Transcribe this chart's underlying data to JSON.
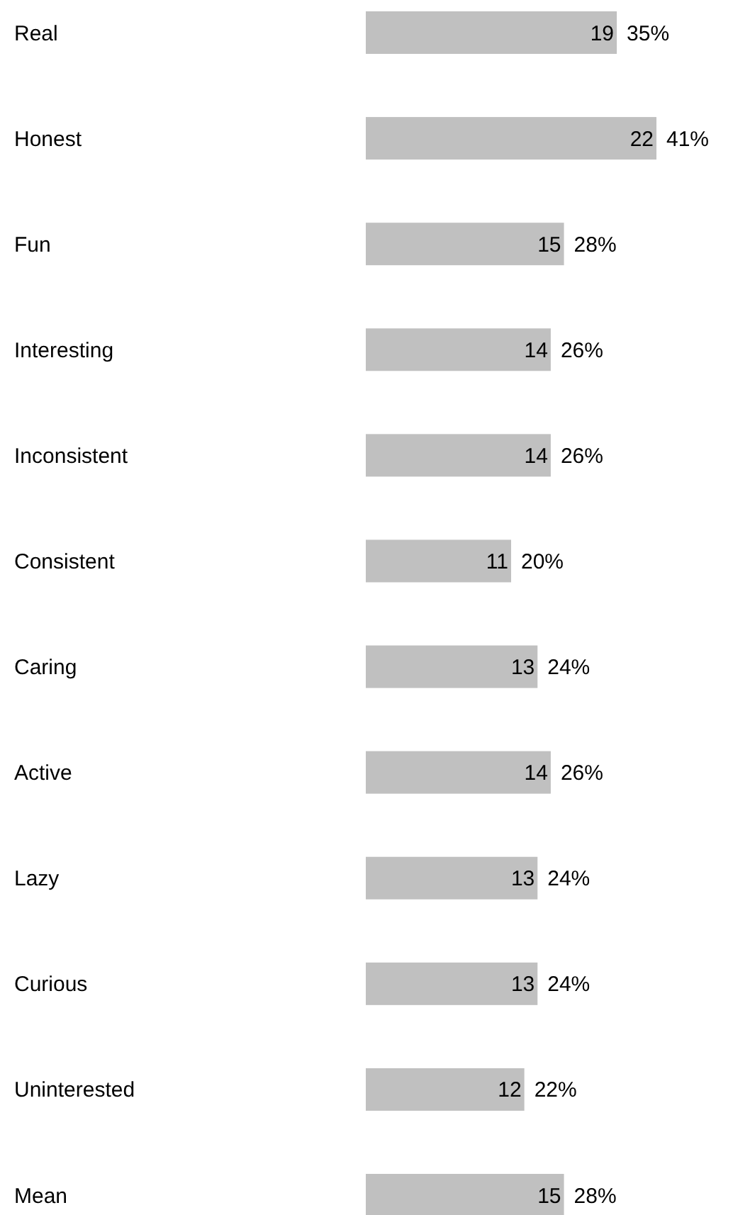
{
  "chart_data": {
    "type": "bar",
    "orientation": "horizontal",
    "categories": [
      "Real",
      "Honest",
      "Fun",
      "Interesting",
      "Inconsistent",
      "Consistent",
      "Caring",
      "Active",
      "Lazy",
      "Curious",
      "Uninterested",
      "Mean"
    ],
    "values": [
      19,
      22,
      15,
      14,
      14,
      11,
      13,
      14,
      13,
      13,
      12,
      15
    ],
    "color": "#c0c0c0",
    "data_labels": true,
    "annotations": [
      {
        "text": "35%",
        "x": 19,
        "y": "Real"
      },
      {
        "text": "41%",
        "x": 22,
        "y": "Honest"
      },
      {
        "text": "28%",
        "x": 15,
        "y": "Fun"
      },
      {
        "text": "26%",
        "x": 14,
        "y": "Interesting"
      },
      {
        "text": "26%",
        "x": 14,
        "y": "Inconsistent"
      },
      {
        "text": "20%",
        "x": 11,
        "y": "Consistent"
      },
      {
        "text": "24%",
        "x": 13,
        "y": "Caring"
      },
      {
        "text": "26%",
        "x": 14,
        "y": "Active"
      },
      {
        "text": "24%",
        "x": 13,
        "y": "Lazy"
      },
      {
        "text": "24%",
        "x": 13,
        "y": "Curious"
      },
      {
        "text": "22%",
        "x": 12,
        "y": "Uninterested"
      },
      {
        "text": "28%",
        "x": 15,
        "y": "Mean"
      }
    ]
  }
}
